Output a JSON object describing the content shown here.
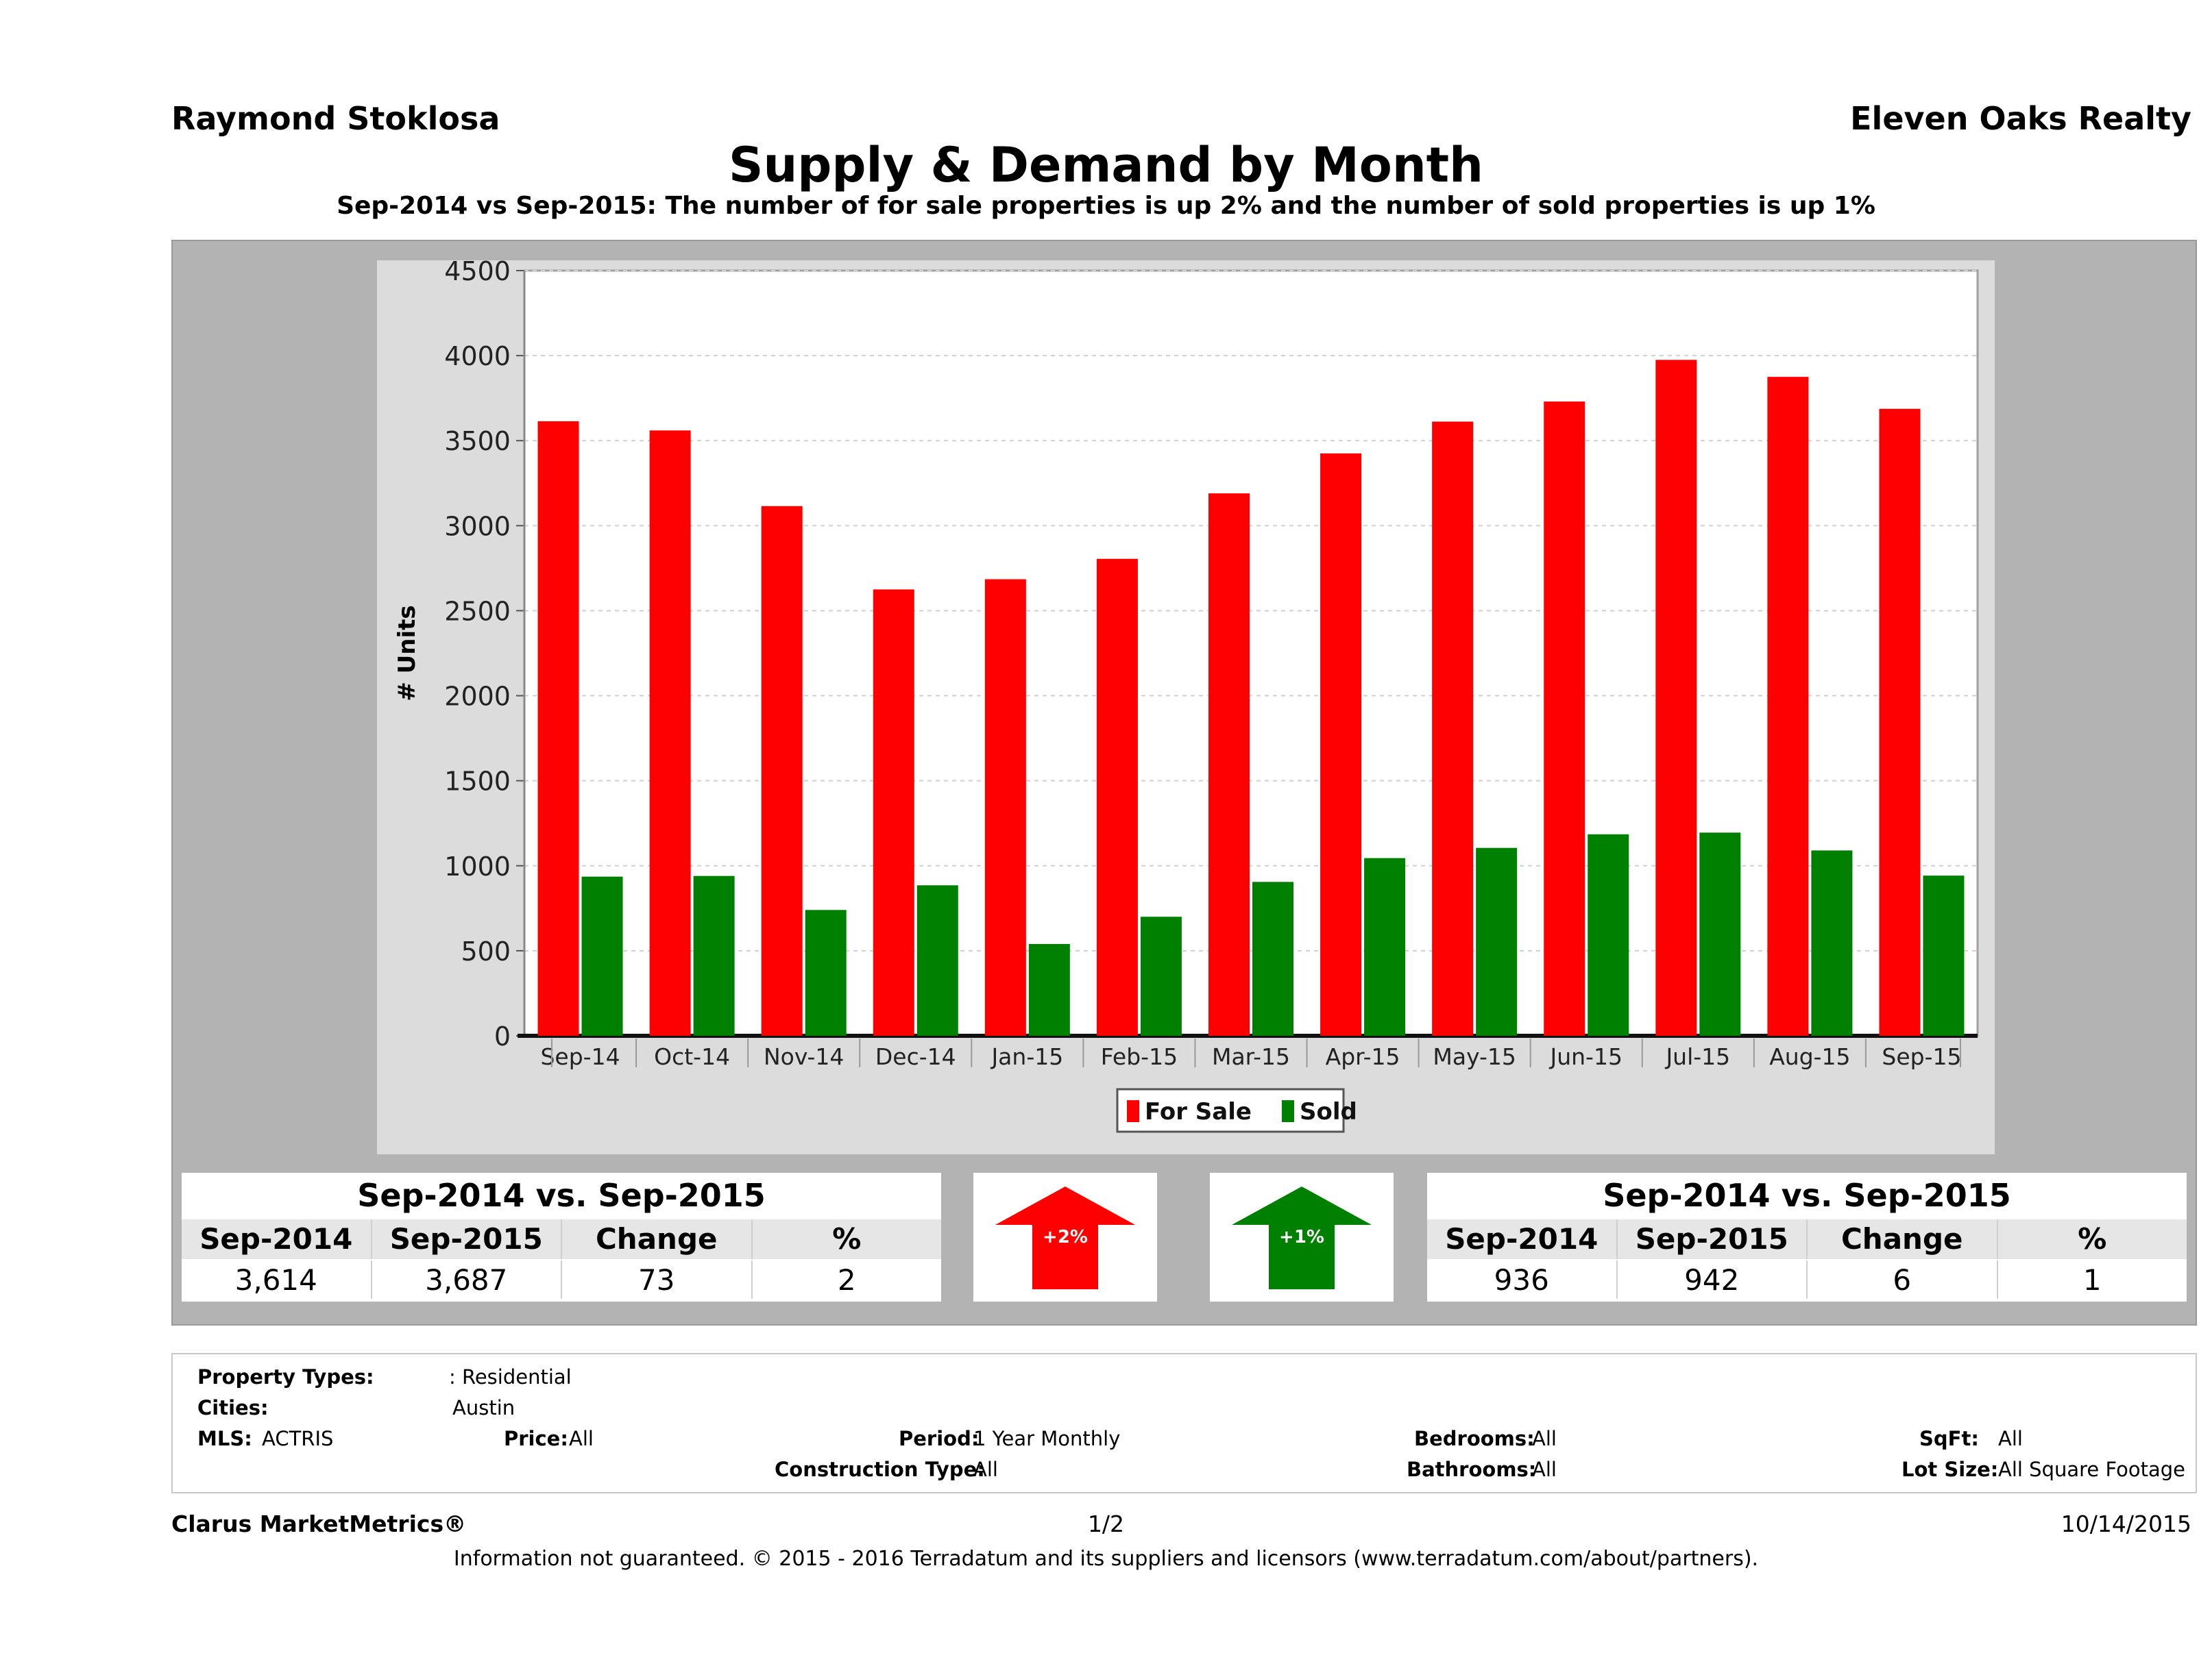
{
  "header": {
    "agent_name": "Raymond Stoklosa",
    "company": "Eleven Oaks Realty",
    "title": "Supply & Demand by Month",
    "subtitle": "Sep-2014 vs Sep-2015: The number of for sale properties is up 2% and the number of sold properties is up 1%"
  },
  "chart_data": {
    "type": "bar",
    "ylabel": "# Units",
    "xlabel": "",
    "ylim": [
      0,
      4500
    ],
    "yticks": [
      0,
      500,
      1000,
      1500,
      2000,
      2500,
      3000,
      3500,
      4000,
      4500
    ],
    "grid": true,
    "legend_position": "bottom",
    "categories": [
      "Sep-14",
      "Oct-14",
      "Nov-14",
      "Dec-14",
      "Jan-15",
      "Feb-15",
      "Mar-15",
      "Apr-15",
      "May-15",
      "Jun-15",
      "Jul-15",
      "Aug-15",
      "Sep-15"
    ],
    "series": [
      {
        "name": "For Sale",
        "color": "#ff0000",
        "values": [
          3614,
          3560,
          3115,
          2625,
          2685,
          2805,
          3190,
          3425,
          3612,
          3730,
          3975,
          3875,
          3687
        ]
      },
      {
        "name": "Sold",
        "color": "#008000",
        "values": [
          936,
          940,
          740,
          885,
          540,
          700,
          905,
          1045,
          1105,
          1185,
          1195,
          1090,
          942
        ]
      }
    ]
  },
  "comparison_for_sale": {
    "heading": "Sep-2014 vs. Sep-2015",
    "columns": [
      "Sep-2014",
      "Sep-2015",
      "Change",
      "%"
    ],
    "values": [
      "3,614",
      "3,687",
      "73",
      "2"
    ],
    "arrow_label": "+2%",
    "arrow_color": "#ff0000"
  },
  "comparison_sold": {
    "heading": "Sep-2014 vs. Sep-2015",
    "columns": [
      "Sep-2014",
      "Sep-2015",
      "Change",
      "%"
    ],
    "values": [
      "936",
      "942",
      "6",
      "1"
    ],
    "arrow_label": "+1%",
    "arrow_color": "#008000"
  },
  "filters": {
    "property_types_label": "Property Types:",
    "property_types_value": ": Residential",
    "cities_label": "Cities:",
    "cities_value": "Austin",
    "mls_label": "MLS:",
    "mls_value": "ACTRIS",
    "price_label": "Price:",
    "price_value": "All",
    "period_label": "Period:",
    "period_value": "1 Year Monthly",
    "construction_label": "Construction Type:",
    "construction_value": "All",
    "bedrooms_label": "Bedrooms:",
    "bedrooms_value": "All",
    "bathrooms_label": "Bathrooms:",
    "bathrooms_value": "All",
    "sqft_label": "SqFt:",
    "sqft_value": "All",
    "lotsize_label": "Lot Size:",
    "lotsize_value": "All Square Footage"
  },
  "footer": {
    "brand": "Clarus MarketMetrics®",
    "page": "1/2",
    "date": "10/14/2015",
    "disclaimer": "Information not guaranteed. © 2015 - 2016 Terradatum and its suppliers and licensors (www.terradatum.com/about/partners)."
  }
}
